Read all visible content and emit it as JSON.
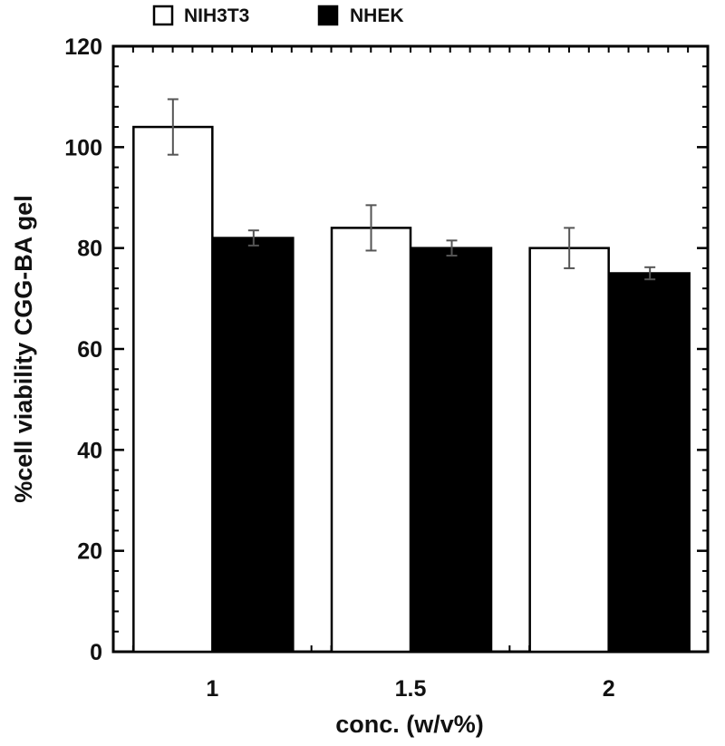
{
  "chart_data": {
    "type": "bar",
    "categories": [
      "1",
      "1.5",
      "2"
    ],
    "series": [
      {
        "name": "NIH3T3",
        "values": [
          104,
          84,
          80
        ],
        "errors": [
          5.5,
          4.5,
          4
        ],
        "fill": "#ffffff"
      },
      {
        "name": "NHEK",
        "values": [
          82,
          80,
          75
        ],
        "errors": [
          1.5,
          1.5,
          1.2
        ],
        "fill": "#000000"
      }
    ],
    "xlabel": "conc. (w/v%)",
    "ylabel": "%cell viability CGG-BA gel",
    "ylim": [
      0,
      120
    ],
    "yticks": [
      0,
      20,
      40,
      60,
      80,
      100,
      120
    ],
    "grid": false,
    "legend_position": "top"
  }
}
